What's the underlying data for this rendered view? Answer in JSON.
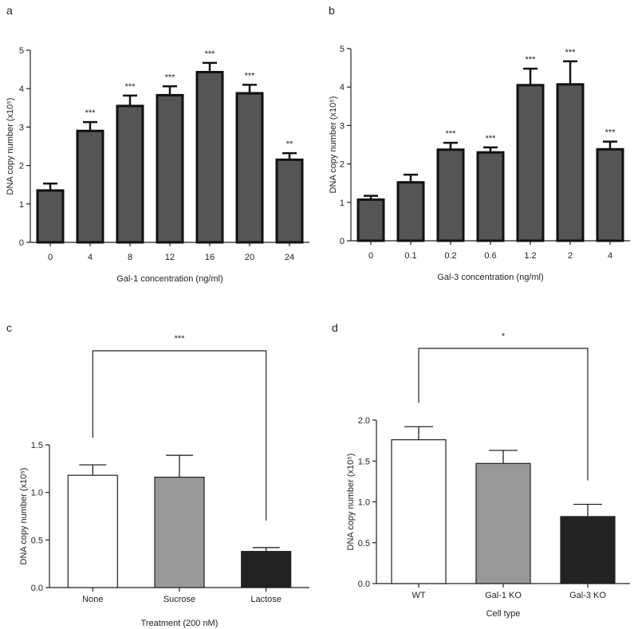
{
  "chart_data": [
    {
      "panel": "a",
      "type": "bar",
      "xlabel": "Gal-1 concentration (ng/ml)",
      "ylabel": "DNA copy number (x10⁵)",
      "ylim": [
        0,
        5
      ],
      "yticks": [
        "0",
        "1",
        "2",
        "3",
        "4",
        "5"
      ],
      "categories": [
        "0",
        "4",
        "8",
        "12",
        "16",
        "20",
        "24"
      ],
      "values": [
        1.35,
        2.9,
        3.55,
        3.83,
        4.43,
        3.88,
        2.15
      ],
      "errors": [
        0.18,
        0.23,
        0.27,
        0.23,
        0.24,
        0.22,
        0.17
      ],
      "significance": [
        "",
        "***",
        "***",
        "***",
        "***",
        "***",
        "**"
      ],
      "bar_color": "#555555"
    },
    {
      "panel": "b",
      "type": "bar",
      "xlabel": "Gal-3 concentration (ng/ml)",
      "ylabel": "DNA copy number (x10⁵)",
      "ylim": [
        0,
        5
      ],
      "yticks": [
        "0",
        "1",
        "2",
        "3",
        "4",
        "5"
      ],
      "categories": [
        "0",
        "0.1",
        "0.2",
        "0.6",
        "1.2",
        "2",
        "4"
      ],
      "values": [
        1.07,
        1.52,
        2.37,
        2.3,
        4.05,
        4.07,
        2.38
      ],
      "errors": [
        0.1,
        0.2,
        0.18,
        0.13,
        0.43,
        0.6,
        0.2
      ],
      "significance": [
        "",
        "",
        "***",
        "***",
        "***",
        "***",
        "***"
      ],
      "bar_color": "#555555"
    },
    {
      "panel": "c",
      "type": "bar",
      "xlabel": "Treatment (200 nM)",
      "ylabel": "DNA copy number (x10⁵)",
      "ylim": [
        0,
        1.5
      ],
      "yticks": [
        "0.0",
        "0.5",
        "1.0",
        "1.5"
      ],
      "categories": [
        "None",
        "Sucrose",
        "Lactose"
      ],
      "values": [
        1.18,
        1.16,
        0.38
      ],
      "errors": [
        0.11,
        0.23,
        0.04
      ],
      "bar_colors": [
        "#ffffff",
        "#999999",
        "#222222"
      ],
      "bracket": {
        "from": 0,
        "to": 2,
        "label": "***"
      }
    },
    {
      "panel": "d",
      "type": "bar",
      "xlabel": "Cell type",
      "ylabel": "DNA copy number (x10⁵)",
      "ylim": [
        0,
        2.0
      ],
      "yticks": [
        "0.0",
        "0.5",
        "1.0",
        "1.5",
        "2.0"
      ],
      "categories": [
        "WT",
        "Gal-1 KO",
        "Gal-3 KO"
      ],
      "values": [
        1.76,
        1.47,
        0.82
      ],
      "errors": [
        0.16,
        0.16,
        0.15
      ],
      "bar_colors": [
        "#ffffff",
        "#999999",
        "#222222"
      ],
      "bracket": {
        "from": 0,
        "to": 2,
        "label": "*"
      }
    }
  ]
}
